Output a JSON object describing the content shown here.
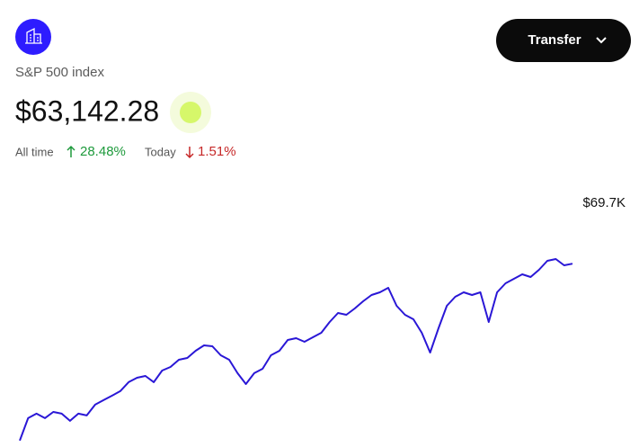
{
  "header": {
    "title": "S&P 500 index",
    "balance": "$63,142.28",
    "all_time_label": "All time",
    "all_time_change": "28.48%",
    "today_label": "Today",
    "today_change": "1.51%"
  },
  "button": {
    "label": "Transfer"
  },
  "chart_data": {
    "type": "line",
    "annotation": "$69.7K",
    "color": "#2a17d6",
    "ylim": [
      48650,
      69700
    ],
    "values": [
      49152,
      50930,
      51285,
      50930,
      51427,
      51285,
      50716,
      51285,
      51143,
      51996,
      52352,
      52707,
      53063,
      53774,
      54129,
      54271,
      53774,
      54698,
      54982,
      55551,
      55693,
      56262,
      56689,
      56618,
      55907,
      55551,
      54485,
      53631,
      54485,
      54840,
      55907,
      56262,
      57115,
      57257,
      56973,
      57329,
      57684,
      58537,
      59248,
      59106,
      59604,
      60173,
      60670,
      60884,
      61239,
      59817,
      59106,
      58751,
      57684,
      56120,
      58040,
      59817,
      60528,
      60884,
      60670,
      60884,
      58537,
      60884,
      61595,
      61950,
      62306,
      62092,
      62661,
      63372,
      63514,
      63017,
      63142
    ]
  }
}
